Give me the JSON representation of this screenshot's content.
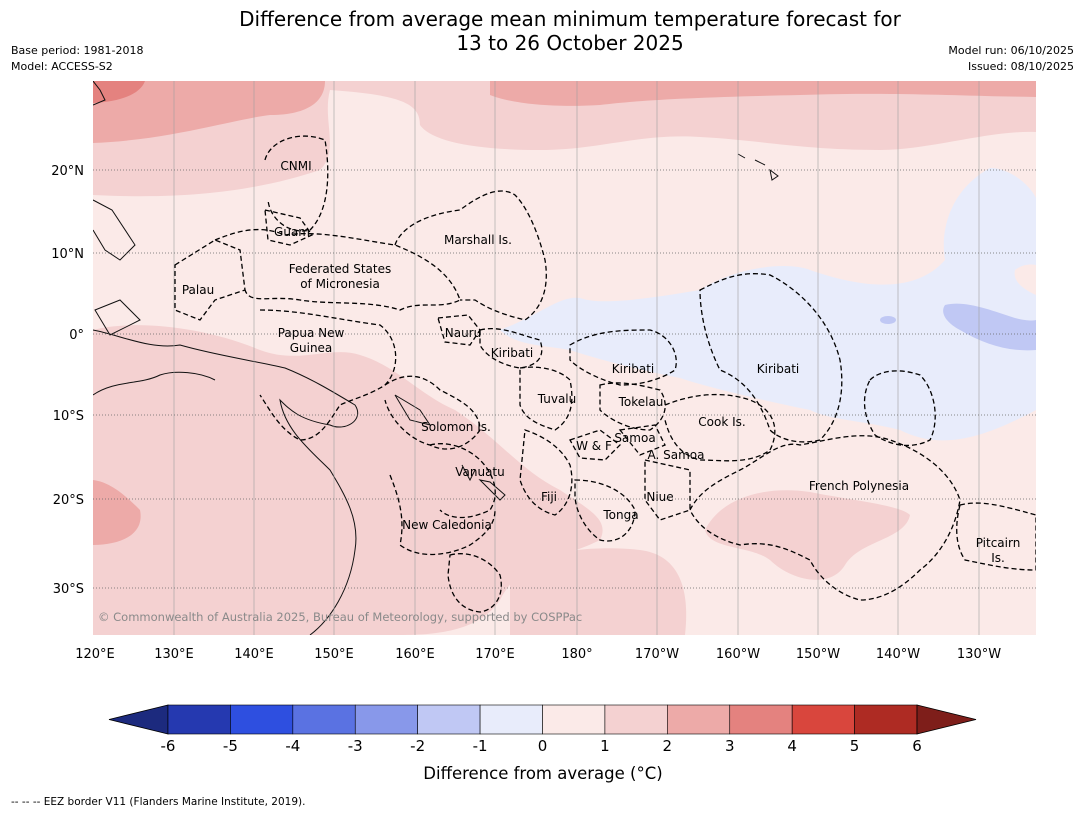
{
  "title": {
    "line1": "Difference from average mean minimum temperature forecast for",
    "line2": "13 to 26 October 2025"
  },
  "meta": {
    "base_period": "Base period: 1981-2018",
    "model": "Model: ACCESS-S2",
    "model_run": "Model run: 06/10/2025",
    "issued": "Issued: 08/10/2025"
  },
  "axes": {
    "lat_labels": [
      "20°N",
      "10°N",
      "0°",
      "10°S",
      "20°S",
      "30°S"
    ],
    "lon_labels": [
      "120°E",
      "130°E",
      "140°E",
      "150°E",
      "160°E",
      "170°E",
      "180°",
      "170°W",
      "160°W",
      "150°W",
      "140°W",
      "130°W"
    ]
  },
  "places": {
    "cnmi": "CNMI",
    "guam": "Guam",
    "marshall": "Marshall Is.",
    "fsm_1": "Federated States",
    "fsm_2": "of Micronesia",
    "palau": "Palau",
    "png_1": "Papua New",
    "png_2": "Guinea",
    "nauru": "Nauru",
    "kiribati_w": "Kiribati",
    "kiribati_c": "Kiribati",
    "kiribati_e": "Kiribati",
    "tuvalu": "Tuvalu",
    "tokelau": "Tokelau",
    "cook": "Cook Is.",
    "solomon": "Solomon Is.",
    "wf": "W & F",
    "samoa": "Samoa",
    "asamoa": "A. Samoa",
    "vanuatu": "Vanuatu",
    "fiji": "Fiji",
    "niue": "Niue",
    "tonga": "Tonga",
    "newcal": "New Caledonia",
    "frenchpoly": "French Polynesia",
    "pitcairn_1": "Pitcairn",
    "pitcairn_2": "Is."
  },
  "copyright": "© Commonwealth of Australia 2025, Bureau of Meteorology, supported by COSPPac",
  "colorbar": {
    "ticks": [
      "-6",
      "-5",
      "-4",
      "-3",
      "-2",
      "-1",
      "0",
      "1",
      "2",
      "3",
      "4",
      "5",
      "6"
    ],
    "colors": [
      "#2539b0",
      "#2e4fe0",
      "#5a72e2",
      "#8898ea",
      "#c0c8f4",
      "#e8ecfb",
      "#fbeae8",
      "#f4d1d1",
      "#edaaa8",
      "#e4827f",
      "#d9463d",
      "#ae2b23"
    ],
    "under_color": "#1c2a7e",
    "over_color": "#7e1e1a",
    "label": "Difference from average (°C)"
  },
  "footnote": "--  --  -- EEZ border V11 (Flanders Marine Institute, 2019)."
}
